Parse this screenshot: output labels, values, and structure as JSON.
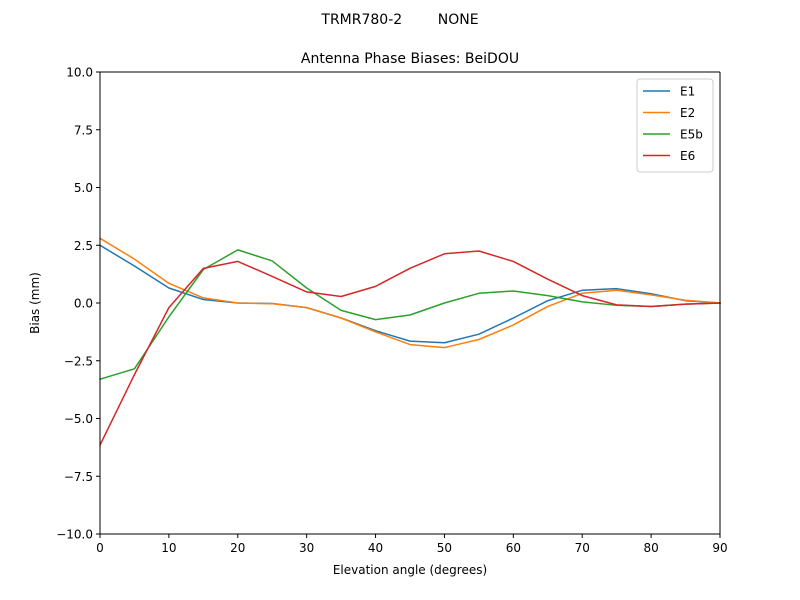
{
  "suptitle": "TRMR780-2        NONE",
  "chart_data": {
    "type": "line",
    "title": "Antenna Phase Biases: BeiDOU",
    "xlabel": "Elevation angle (degrees)",
    "ylabel": "Bias (mm)",
    "xlim": [
      0,
      90
    ],
    "ylim": [
      -10,
      10
    ],
    "xticks": [
      0,
      10,
      20,
      30,
      40,
      50,
      60,
      70,
      80,
      90
    ],
    "yticks": [
      -10.0,
      -7.5,
      -5.0,
      -2.5,
      0.0,
      2.5,
      5.0,
      7.5,
      10.0
    ],
    "xtick_labels": [
      "0",
      "10",
      "20",
      "30",
      "40",
      "50",
      "60",
      "70",
      "80",
      "90"
    ],
    "ytick_labels": [
      "−10.0",
      "−7.5",
      "−5.0",
      "−2.5",
      "0.0",
      "2.5",
      "5.0",
      "7.5",
      "10.0"
    ],
    "legend_position": "top-right",
    "grid": false,
    "x": [
      0,
      5,
      10,
      15,
      20,
      25,
      30,
      35,
      40,
      45,
      50,
      55,
      60,
      65,
      70,
      75,
      80,
      85,
      90
    ],
    "series": [
      {
        "name": "E1",
        "color": "#1f77b4",
        "values": [
          2.5,
          1.6,
          0.65,
          0.15,
          0.0,
          -0.02,
          -0.2,
          -0.65,
          -1.2,
          -1.65,
          -1.72,
          -1.35,
          -0.65,
          0.1,
          0.55,
          0.62,
          0.4,
          0.1,
          0.0
        ]
      },
      {
        "name": "E2",
        "color": "#ff7f0e",
        "values": [
          2.8,
          1.9,
          0.85,
          0.22,
          0.0,
          -0.03,
          -0.2,
          -0.65,
          -1.25,
          -1.8,
          -1.93,
          -1.58,
          -0.95,
          -0.15,
          0.42,
          0.55,
          0.35,
          0.12,
          0.0
        ]
      },
      {
        "name": "E5b",
        "color": "#2ca02c",
        "values": [
          -3.3,
          -2.85,
          -0.6,
          1.45,
          2.3,
          1.82,
          0.65,
          -0.32,
          -0.72,
          -0.52,
          0.0,
          0.42,
          0.52,
          0.32,
          0.05,
          -0.1,
          -0.15,
          -0.05,
          0.0
        ]
      },
      {
        "name": "E6",
        "color": "#d62728",
        "values": [
          -6.15,
          -3.1,
          -0.2,
          1.5,
          1.8,
          1.15,
          0.48,
          0.28,
          0.72,
          1.5,
          2.13,
          2.25,
          1.8,
          1.03,
          0.32,
          -0.08,
          -0.15,
          -0.05,
          0.0
        ]
      }
    ]
  }
}
